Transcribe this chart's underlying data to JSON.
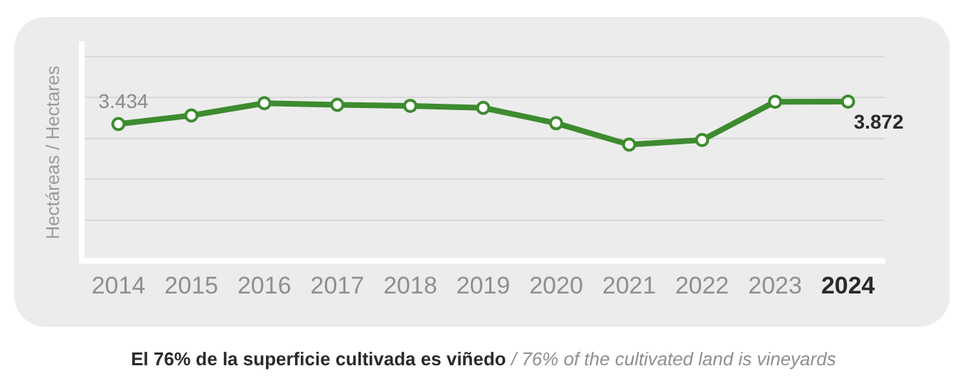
{
  "chart_data": {
    "type": "line",
    "title": "El 76% de la superficie cultivada es viñedo",
    "subtitle": "/ 76% of the cultivated land is vineyards",
    "ylabel": "Hectáreas / Hectares",
    "categories": [
      "2014",
      "2015",
      "2016",
      "2017",
      "2018",
      "2019",
      "2020",
      "2021",
      "2022",
      "2023",
      "2024"
    ],
    "series": [
      {
        "color": "#3d8b2f",
        "values": [
          3.434,
          3.6,
          3.84,
          3.81,
          3.79,
          3.75,
          3.45,
          3.03,
          3.12,
          3.87,
          3.872
        ],
        "value_labels": [
          "3.434",
          null,
          null,
          null,
          null,
          null,
          null,
          null,
          null,
          null,
          "3.872"
        ]
      }
    ],
    "ylim": [
      0.75,
      5.0
    ],
    "yticks": [
      {
        "value": 1.55,
        "label": null
      },
      {
        "value": 2.35,
        "label": null
      },
      {
        "value": 3.15,
        "label": null
      },
      {
        "value": 3.95,
        "label": null
      },
      {
        "value": 4.75,
        "label": null
      }
    ],
    "tick_labels": "x",
    "grid": "y",
    "legend": false,
    "marker": "circle",
    "line_style": "solid"
  }
}
